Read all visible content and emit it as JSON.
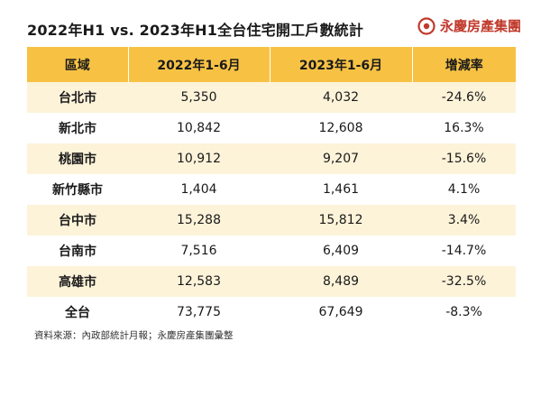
{
  "header": {
    "title": "2022年H1 vs. 2023年H1全台住宅開工戶數統計",
    "brand": "永慶房產集團",
    "brand_color": "#c0392b",
    "logo_icon": "brand-logo-icon"
  },
  "colors": {
    "header_bg": "#f7c244",
    "stripe_bg": "#fdf3d9"
  },
  "chart_data": {
    "type": "table",
    "title": "2022年H1 vs. 2023年H1全台住宅開工戶數統計",
    "columns": [
      "區域",
      "2022年1-6月",
      "2023年1-6月",
      "增減率"
    ],
    "rows": [
      [
        "台北市",
        "5,350",
        "4,032",
        "-24.6%"
      ],
      [
        "新北市",
        "10,842",
        "12,608",
        "16.3%"
      ],
      [
        "桃園市",
        "10,912",
        "9,207",
        "-15.6%"
      ],
      [
        "新竹縣市",
        "1,404",
        "1,461",
        "4.1%"
      ],
      [
        "台中市",
        "15,288",
        "15,812",
        "3.4%"
      ],
      [
        "台南市",
        "7,516",
        "6,409",
        "-14.7%"
      ],
      [
        "高雄市",
        "12,583",
        "8,489",
        "-32.5%"
      ],
      [
        "全台",
        "73,775",
        "67,649",
        "-8.3%"
      ]
    ]
  },
  "footer": {
    "source": "資料來源：內政部統計月報；永慶房產集團彙整"
  }
}
